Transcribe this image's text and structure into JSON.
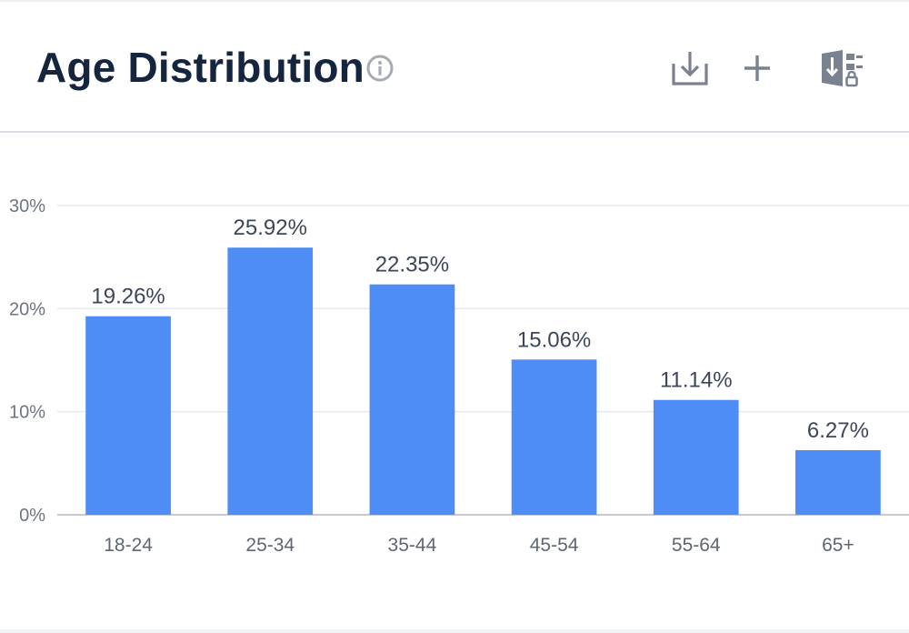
{
  "header": {
    "title": "Age Distribution",
    "icons": {
      "info": "info-icon",
      "download": "download-icon",
      "add": "plus-icon",
      "excel": "excel-export-icon"
    }
  },
  "colors": {
    "bar": "#4e8df5",
    "title": "#14253d",
    "gridline": "#e7e9ec",
    "axis": "#c6c9cf"
  },
  "chart_data": {
    "type": "bar",
    "title": "Age Distribution",
    "xlabel": "",
    "ylabel": "",
    "categories": [
      "18-24",
      "25-34",
      "35-44",
      "45-54",
      "55-64",
      "65+"
    ],
    "values": [
      19.26,
      25.92,
      22.35,
      15.06,
      11.14,
      6.27
    ],
    "data_labels": [
      "19.26%",
      "25.92%",
      "22.35%",
      "15.06%",
      "11.14%",
      "6.27%"
    ],
    "y_ticks": [
      0,
      10,
      20,
      30
    ],
    "y_tick_labels": [
      "0%",
      "10%",
      "20%",
      "30%"
    ],
    "ylim": [
      0,
      30
    ],
    "grid": true,
    "legend": "none"
  }
}
